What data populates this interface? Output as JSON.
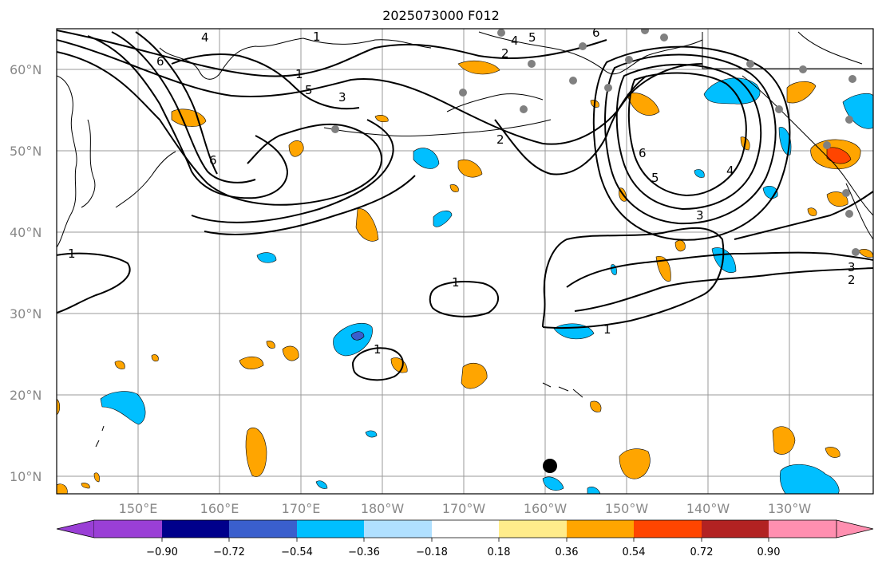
{
  "title": "2025073000 F012",
  "map": {
    "lat_labels": [
      "60°N",
      "50°N",
      "40°N",
      "30°N",
      "20°N",
      "10°N"
    ],
    "lon_labels": [
      "150°E",
      "160°E",
      "170°E",
      "180°W",
      "170°W",
      "160°W",
      "150°W",
      "140°W",
      "130°W"
    ],
    "contour_labels": [
      "1",
      "6",
      "5",
      "3",
      "2",
      "1",
      "6",
      "4",
      "6",
      "5",
      "4",
      "3",
      "1",
      "1",
      "1",
      "3",
      "2",
      "6",
      "5",
      "4",
      "2",
      "1"
    ],
    "colors": {
      "contour": "#000000",
      "grid": "#9a9a9a",
      "station_dot": "#808080",
      "marker": "#000000"
    }
  },
  "colorbar": {
    "ticks": [
      "−0.90",
      "−0.72",
      "−0.54",
      "−0.36",
      "−0.18",
      "0.18",
      "0.36",
      "0.54",
      "0.72",
      "0.90"
    ],
    "colors": [
      "#9a3fd6",
      "#00008b",
      "#3a5fcd",
      "#00bfff",
      "#b0e0ff",
      "#ffffff",
      "#ffec8b",
      "#ffa500",
      "#ff4500",
      "#b22222",
      "#ff8fb0"
    ]
  }
}
